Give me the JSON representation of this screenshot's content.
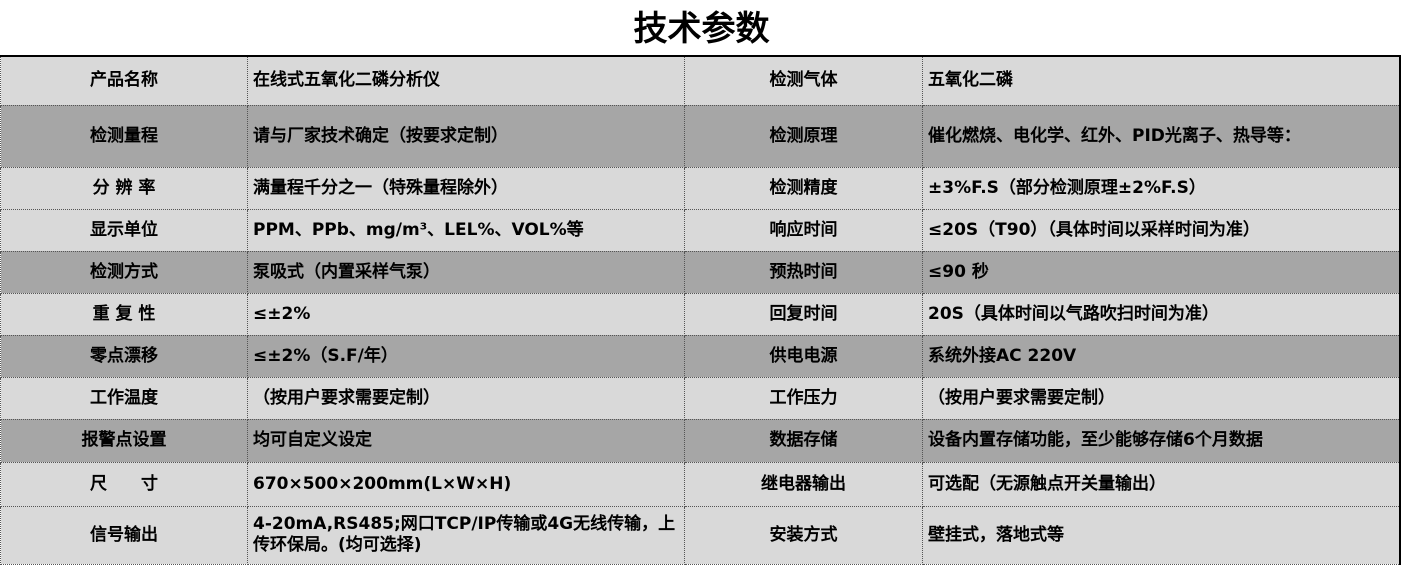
{
  "title": "技术参数",
  "colors": {
    "light_row": "#d9d9d9",
    "dark_row": "#a6a6a6"
  },
  "rows": [
    {
      "shade": "light",
      "k1": "产品名称",
      "v1": "在线式五氧化二磷分析仪",
      "k2": "检测气体",
      "v2": "五氧化二磷"
    },
    {
      "shade": "dark",
      "k1": "检测量程",
      "v1": "请与厂家技术确定（按要求定制）",
      "k2": "检测原理",
      "v2": "催化燃烧、电化学、红外、PID光离子、热导等："
    },
    {
      "shade": "light",
      "k1": "分 辨 率",
      "v1": "满量程千分之一（特殊量程除外）",
      "k2": "检测精度",
      "v2": "±3%F.S（部分检测原理±2%F.S）"
    },
    {
      "shade": "light",
      "k1": "显示单位",
      "v1": "PPM、PPb、mg/m³、LEL%、VOL%等",
      "k2": "响应时间",
      "v2": "≤20S（T90）（具体时间以采样时间为准）"
    },
    {
      "shade": "dark",
      "k1": "检测方式",
      "v1": "泵吸式（内置采样气泵）",
      "k2": "预热时间",
      "v2": "≤90 秒"
    },
    {
      "shade": "light",
      "k1": "重 复 性",
      "v1": "≤±2%",
      "k2": "回复时间",
      "v2": "20S（具体时间以气路吹扫时间为准）"
    },
    {
      "shade": "dark",
      "k1": "零点漂移",
      "v1": "≤±2%（S.F/年）",
      "k2": "供电电源",
      "v2": "系统外接AC 220V"
    },
    {
      "shade": "light",
      "k1": "工作温度",
      "v1": "（按用户要求需要定制）",
      "k2": "工作压力",
      "v2": "（按用户要求需要定制）"
    },
    {
      "shade": "dark",
      "k1": "报警点设置",
      "v1": "均可自定义设定",
      "k2": "数据存储",
      "v2": "设备内置存储功能，至少能够存储6个月数据"
    },
    {
      "shade": "light",
      "k1": "尺　　寸",
      "v1": "670×500×200mm(L×W×H)",
      "k2": "继电器输出",
      "v2": "可选配（无源触点开关量输出）"
    },
    {
      "shade": "light",
      "k1": "信号输出",
      "v1": "4-20mA,RS485;网口TCP/IP传输或4G无线传输，上传环保局。(均可选择)",
      "k2": "安装方式",
      "v2": "壁挂式，落地式等"
    }
  ]
}
